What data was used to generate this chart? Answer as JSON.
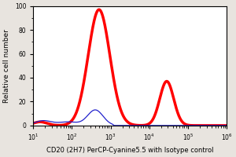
{
  "xlabel": "CD20 (2H7) PerCP-Cyanine5.5 with Isotype control",
  "ylabel": "Relative cell number",
  "xlim_log": [
    1,
    6
  ],
  "ylim": [
    0,
    100
  ],
  "yticks": [
    0,
    20,
    40,
    60,
    80,
    100
  ],
  "background_color": "#e8e4df",
  "plot_bg_color": "#ffffff",
  "red_color": "#ff0000",
  "blue_color": "#2222cc",
  "xlabel_fontsize": 6.0,
  "ylabel_fontsize": 6.5,
  "tick_fontsize": 5.5,
  "red_linewidth": 2.5,
  "blue_linewidth": 0.9
}
